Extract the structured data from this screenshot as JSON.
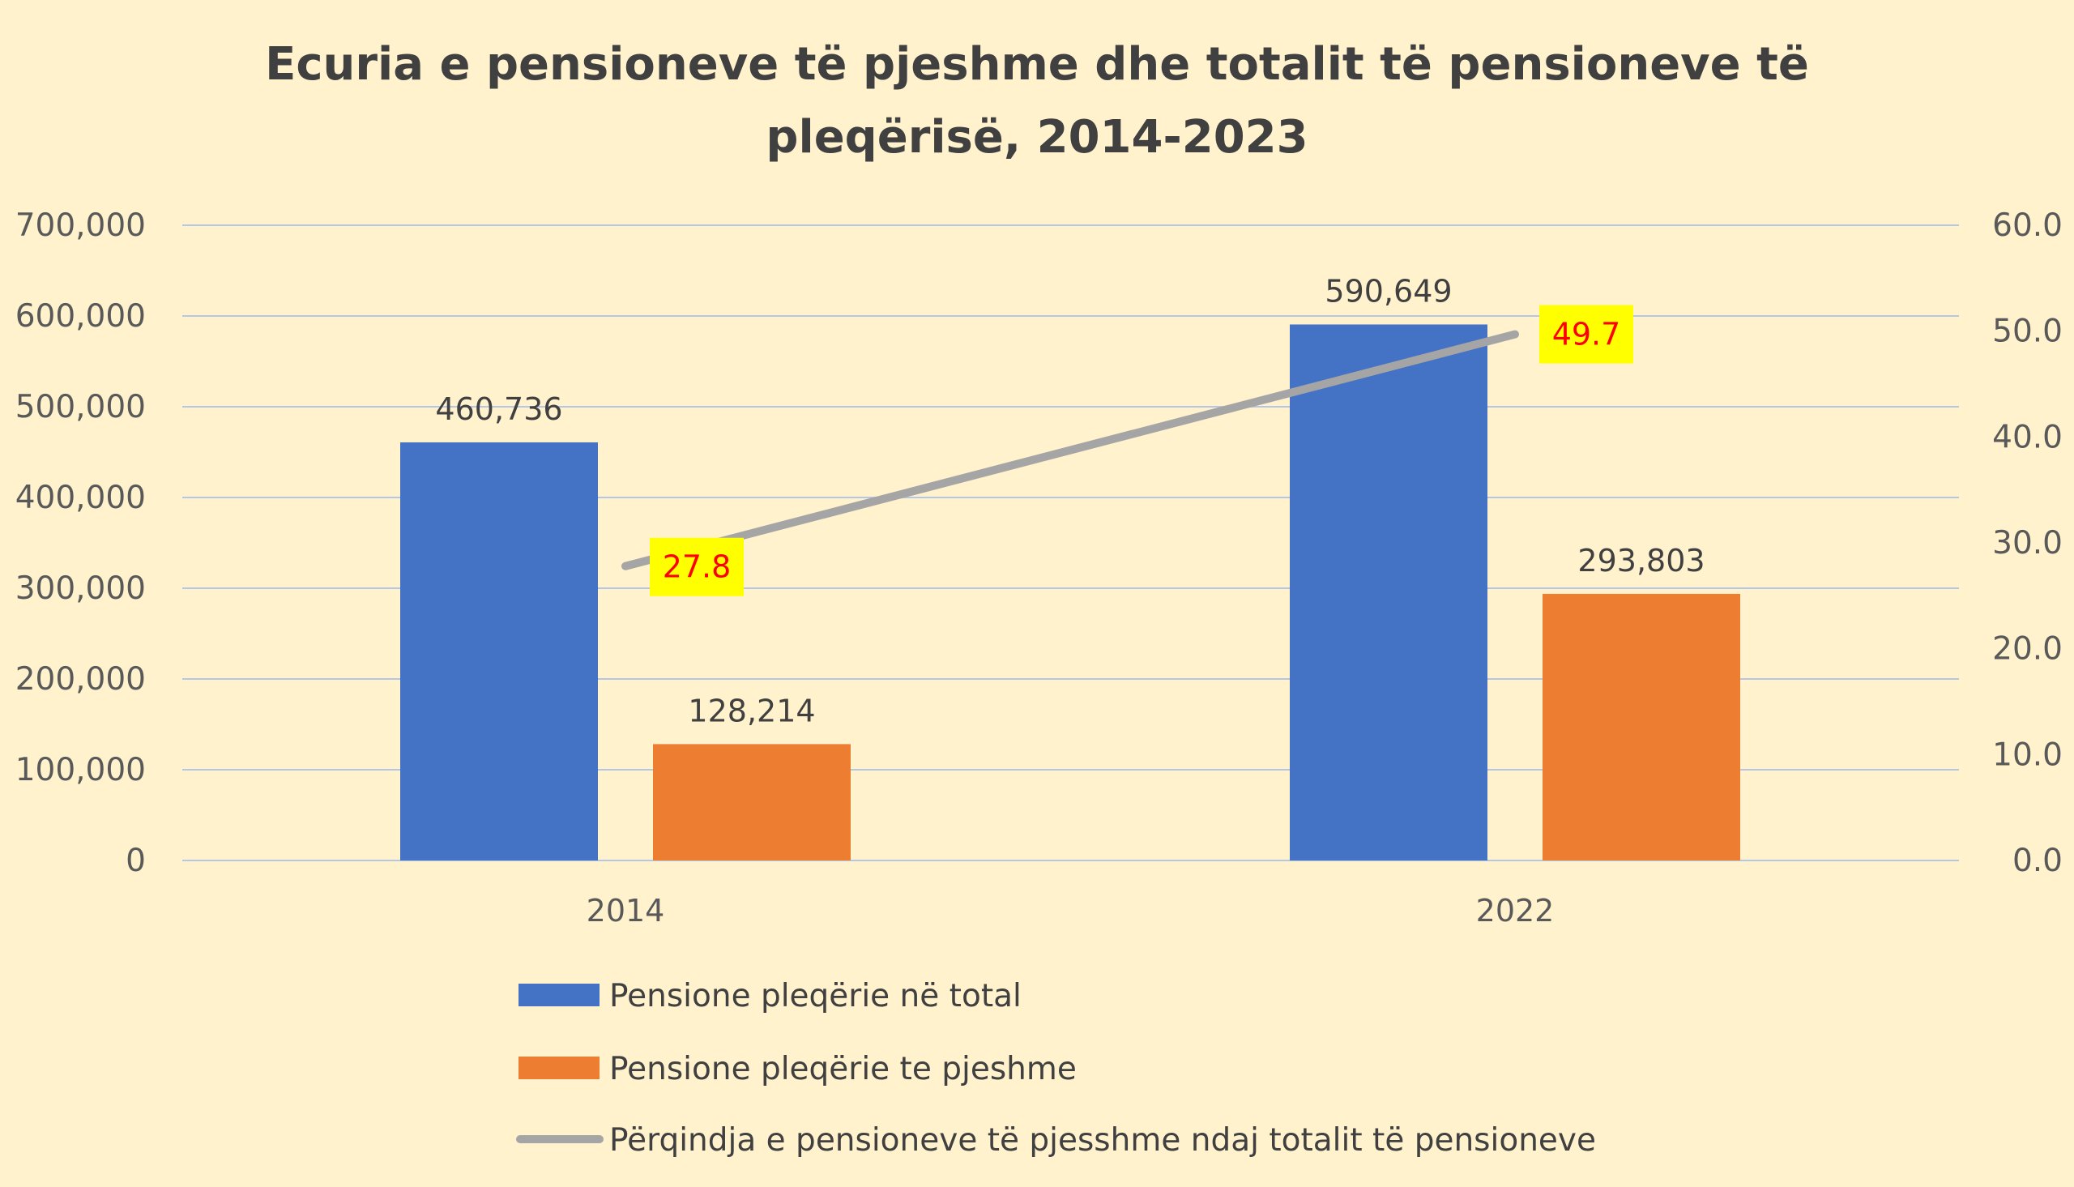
{
  "chart_data": {
    "type": "bar",
    "title_lines": [
      "Ecuria e pensioneve të pjeshme dhe totalit të pensioneve të",
      "pleqërisë, 2014-2023"
    ],
    "categories": [
      "2014",
      "2022"
    ],
    "y_left": {
      "min": 0,
      "max": 700000,
      "ticks": [
        0,
        100000,
        200000,
        300000,
        400000,
        500000,
        600000,
        700000
      ],
      "tick_labels": [
        "0",
        "100,000",
        "200,000",
        "300,000",
        "400,000",
        "500,000",
        "600,000",
        "700,000"
      ]
    },
    "y_right": {
      "min": 0,
      "max": 60,
      "ticks": [
        0,
        10,
        20,
        30,
        40,
        50,
        60
      ],
      "tick_labels": [
        "0.0",
        "10.0",
        "20.0",
        "30.0",
        "40.0",
        "50.0",
        "60.0"
      ]
    },
    "grid": true,
    "legend_position": "bottom",
    "series": [
      {
        "name": "Pensione pleqërie në total",
        "type": "bar",
        "axis": "left",
        "color": "#4472C4",
        "values": [
          460736,
          590649
        ],
        "value_labels": [
          "460,736",
          "590,649"
        ]
      },
      {
        "name": "Pensione pleqërie te pjeshme",
        "type": "bar",
        "axis": "left",
        "color": "#ED7D31",
        "values": [
          128214,
          293803
        ],
        "value_labels": [
          "128,214",
          "293,803"
        ]
      },
      {
        "name": "Përqindja e pensioneve të pjesshme ndaj totalit të pensioneve",
        "type": "line",
        "axis": "right",
        "color": "#A5A5A5",
        "values": [
          27.8,
          49.7
        ],
        "value_labels": [
          "27.8",
          "49.7"
        ],
        "label_background": "#FFFF00",
        "label_color": "#FF0000"
      }
    ]
  },
  "colors": {
    "background": "#FFF2CC",
    "gridline": "#B4C7E7",
    "axis_text": "#595959",
    "title": "#404040"
  }
}
